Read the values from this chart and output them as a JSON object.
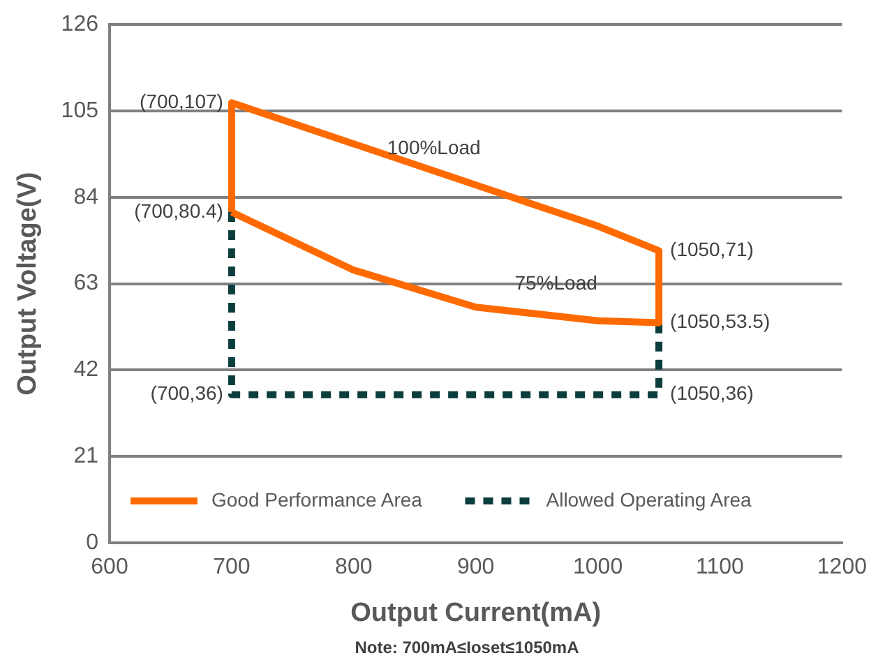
{
  "chart_data": {
    "type": "line",
    "xlabel": "Output Current(mA)",
    "ylabel": "Output Voltage(V)",
    "xlim": [
      600,
      1200
    ],
    "xticks": [
      600,
      700,
      800,
      900,
      1000,
      1100,
      1200
    ],
    "ylim": [
      0,
      126
    ],
    "yticks": [
      0,
      21,
      42,
      63,
      84,
      105,
      126
    ],
    "grid": "y",
    "legend": "bottom",
    "marker": "none",
    "series": [
      {
        "name": "Good Performance Area",
        "color": "#ff6a00",
        "line_style": "solid",
        "x": [
          700,
          700,
          800,
          900,
          1000,
          1050,
          1050
        ],
        "values": [
          80.4,
          107,
          97,
          87,
          77,
          71,
          53.5
        ]
      },
      {
        "color": "#ff6a00",
        "line_style": "solid",
        "x": [
          700,
          800,
          900,
          1000,
          1050
        ],
        "values": [
          80.4,
          66.3,
          57.3,
          54,
          53.5
        ]
      },
      {
        "name": "Allowed Operating Area",
        "color": "#0b3d3d",
        "line_style": "dashed",
        "x": [
          700,
          700,
          1050,
          1050
        ],
        "values": [
          80.4,
          36,
          36,
          53.5
        ]
      }
    ],
    "annotations": [
      {
        "text": "(700,107)",
        "x": 700,
        "y": 107
      },
      {
        "text": "(700,80.4)",
        "x": 700,
        "y": 80.4
      },
      {
        "text": "(700,36)",
        "x": 700,
        "y": 36
      },
      {
        "text": "(1050,71)",
        "x": 1050,
        "y": 71
      },
      {
        "text": "(1050,53.5)",
        "x": 1050,
        "y": 53.5
      },
      {
        "text": "(1050,36)",
        "x": 1050,
        "y": 36
      },
      {
        "text": "100%Load",
        "x": 900,
        "y": 87
      },
      {
        "text": "75%Load",
        "x": 1000,
        "y": 54
      },
      "Note: 700mA≤Ioset≤1050mA"
    ]
  }
}
